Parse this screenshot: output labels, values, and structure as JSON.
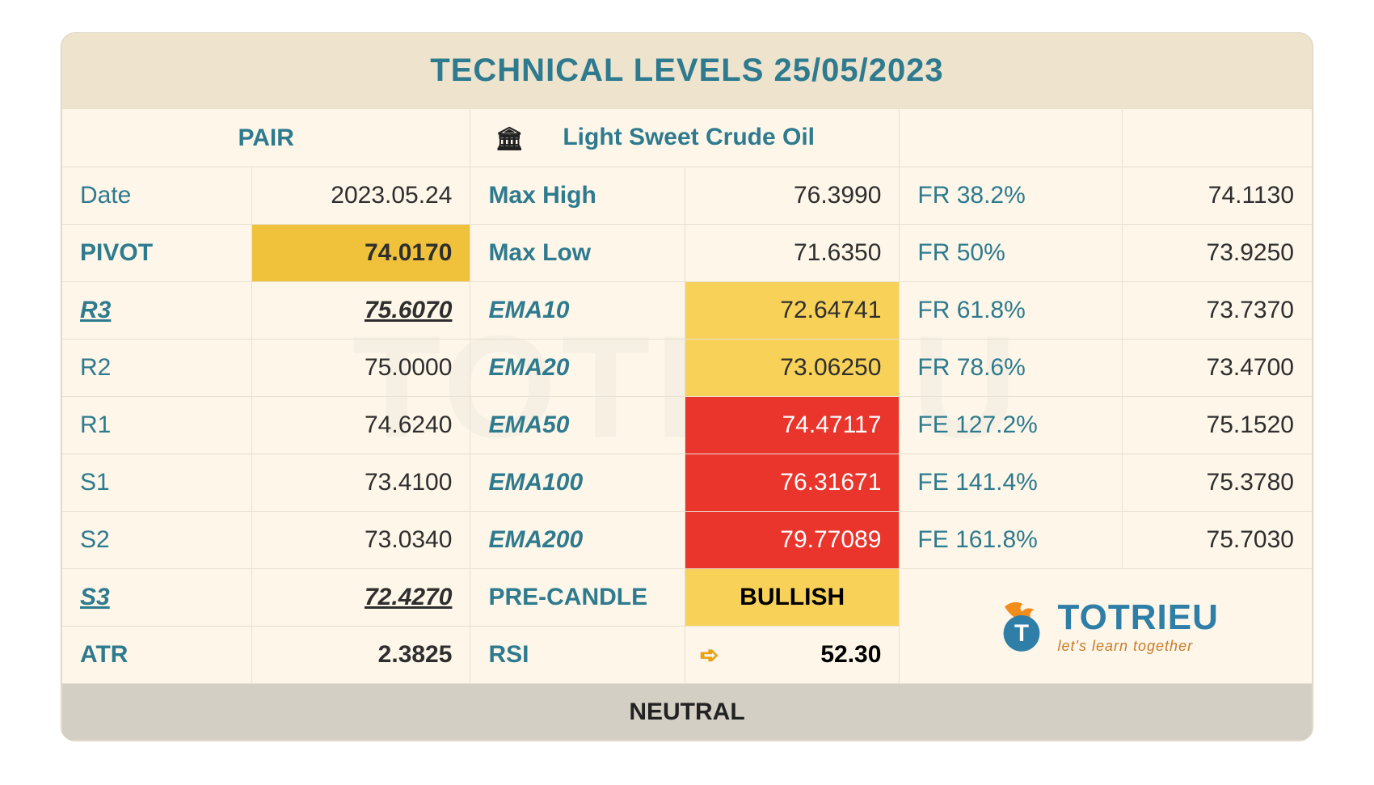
{
  "title": "TECHNICAL LEVELS 25/05/2023",
  "header": {
    "pair_label": "PAIR",
    "instrument": "Light Sweet Crude Oil"
  },
  "colA": [
    {
      "label": "Date",
      "value": "2023.05.24",
      "label_style": "lbl",
      "value_style": "val"
    },
    {
      "label": "PIVOT",
      "value": "74.0170",
      "label_style": "lbl-strong",
      "value_style": "val val-strong hl-yellow-dark"
    },
    {
      "label": "R3",
      "value": "75.6070",
      "label_style": "lbl lbl-ul",
      "value_style": "val val-ul"
    },
    {
      "label": "R2",
      "value": "75.0000",
      "label_style": "lbl",
      "value_style": "val"
    },
    {
      "label": "R1",
      "value": "74.6240",
      "label_style": "lbl",
      "value_style": "val"
    },
    {
      "label": "S1",
      "value": "73.4100",
      "label_style": "lbl",
      "value_style": "val"
    },
    {
      "label": "S2",
      "value": "73.0340",
      "label_style": "lbl",
      "value_style": "val"
    },
    {
      "label": "S3",
      "value": "72.4270",
      "label_style": "lbl lbl-ul",
      "value_style": "val val-ul"
    },
    {
      "label": "ATR",
      "value": "2.3825",
      "label_style": "lbl-strong",
      "value_style": "val val-strong"
    }
  ],
  "colB": [
    {
      "label": "Max High",
      "value": "76.3990",
      "label_style": "lbl-strong",
      "value_style": "val"
    },
    {
      "label": "Max Low",
      "value": "71.6350",
      "label_style": "lbl-strong",
      "value_style": "val"
    },
    {
      "label": "EMA10",
      "value": "72.64741",
      "label_style": "lbl-ema",
      "value_style": "val hl-yellow"
    },
    {
      "label": "EMA20",
      "value": "73.06250",
      "label_style": "lbl-ema",
      "value_style": "val hl-yellow"
    },
    {
      "label": "EMA50",
      "value": "74.47117",
      "label_style": "lbl-ema",
      "value_style": "val hl-red"
    },
    {
      "label": "EMA100",
      "value": "76.31671",
      "label_style": "lbl-ema",
      "value_style": "val hl-red"
    },
    {
      "label": "EMA200",
      "value": "79.77089",
      "label_style": "lbl-ema",
      "value_style": "val hl-red"
    },
    {
      "label": "PRE-CANDLE",
      "value": "BULLISH",
      "label_style": "lbl-strong",
      "value_style": "bullish"
    },
    {
      "label": "RSI",
      "value": "52.30",
      "label_style": "lbl-strong",
      "value_style": "rsi-cell",
      "arrow": "➪"
    }
  ],
  "colC": [
    {
      "label": "FR 38.2%",
      "value": "74.1130"
    },
    {
      "label": "FR 50%",
      "value": "73.9250"
    },
    {
      "label": "FR 61.8%",
      "value": "73.7370"
    },
    {
      "label": "FR 78.6%",
      "value": "73.4700"
    },
    {
      "label": "FE 127.2%",
      "value": "75.1520"
    },
    {
      "label": "FE 141.4%",
      "value": "75.3780"
    },
    {
      "label": "FE 161.8%",
      "value": "75.7030"
    }
  ],
  "logo": {
    "name": "TOTRIEU",
    "tagline": "let's learn together"
  },
  "footer": "NEUTRAL",
  "colors": {
    "title": "#2e7a8e",
    "header_bg": "#eee3cd",
    "body_bg": "#fdf6e9",
    "yellow_dark": "#f0c23b",
    "yellow": "#f7d158",
    "red": "#e9352c",
    "footer_bg": "#d4cfc5",
    "logo_blue": "#2e7ea8",
    "logo_orange": "#f28c1a"
  }
}
